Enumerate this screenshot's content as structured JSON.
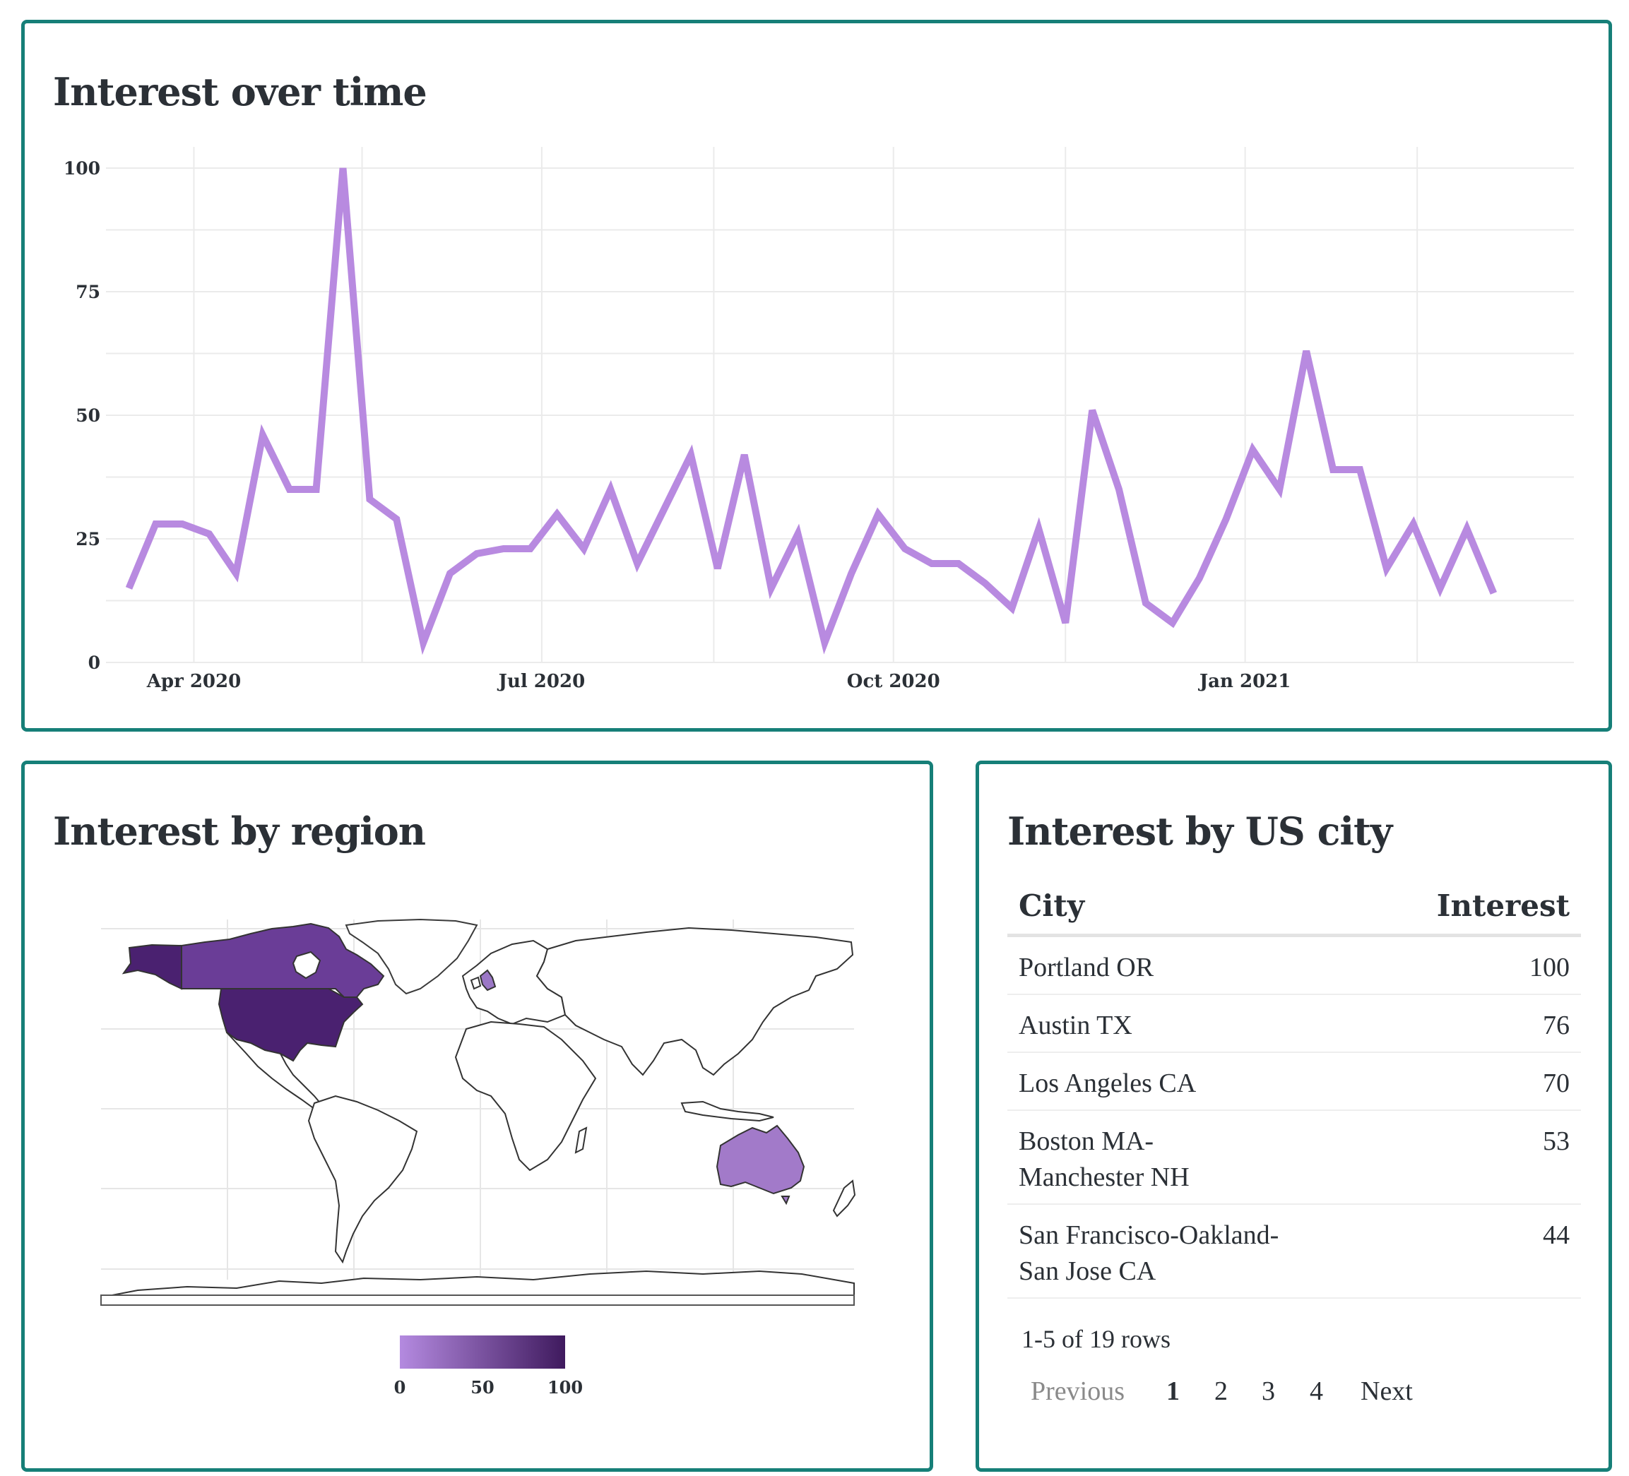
{
  "time_card": {
    "title": "Interest over time"
  },
  "region_card": {
    "title": "Interest by region",
    "legend": {
      "ticks": [
        "0",
        "50",
        "100"
      ],
      "color_low": "#b48ae0",
      "color_high": "#3f1a5e"
    },
    "highlighted_regions": [
      {
        "name": "United States",
        "color": "#4a2170"
      },
      {
        "name": "Canada",
        "color": "#6a3d97"
      },
      {
        "name": "Alaska",
        "color": "#4a2170"
      },
      {
        "name": "Australia",
        "color": "#a27ac9"
      },
      {
        "name": "United Kingdom",
        "color": "#9b77c6"
      }
    ]
  },
  "city_card": {
    "title": "Interest by US city",
    "columns": {
      "city": "City",
      "interest": "Interest"
    },
    "rows": [
      {
        "city": "Portland OR",
        "interest": "100"
      },
      {
        "city": "Austin TX",
        "interest": "76"
      },
      {
        "city": "Los Angeles CA",
        "interest": "70"
      },
      {
        "city": "Boston MA-Manchester NH",
        "interest": "53"
      },
      {
        "city": "San Francisco-Oakland-San Jose CA",
        "interest": "44"
      }
    ],
    "row_count_text": "1-5 of 19 rows",
    "pagination": {
      "previous": "Previous",
      "pages": [
        "1",
        "2",
        "3",
        "4"
      ],
      "current_page": "1",
      "next": "Next"
    }
  },
  "colors": {
    "card_border": "#167f78",
    "line": "#b88ae0",
    "text": "#2b3036"
  },
  "chart_data": {
    "type": "line",
    "title": "Interest over time",
    "xlabel": "",
    "ylabel": "",
    "ylim": [
      0,
      100
    ],
    "yticks": [
      "0",
      "25",
      "50",
      "75",
      "100"
    ],
    "xticks": [
      "Apr 2020",
      "Jul 2020",
      "Oct 2020",
      "Jan 2021"
    ],
    "xlim": [
      "2020-03-09",
      "2021-03-28"
    ],
    "grid": true,
    "series": [
      {
        "color": "#b88ae0",
        "points": [
          [
            "2020-03-15",
            15
          ],
          [
            "2020-03-22",
            28
          ],
          [
            "2020-03-29",
            28
          ],
          [
            "2020-04-05",
            26
          ],
          [
            "2020-04-12",
            18
          ],
          [
            "2020-04-19",
            46
          ],
          [
            "2020-04-26",
            35
          ],
          [
            "2020-05-03",
            35
          ],
          [
            "2020-05-10",
            100
          ],
          [
            "2020-05-17",
            33
          ],
          [
            "2020-05-24",
            29
          ],
          [
            "2020-05-31",
            4
          ],
          [
            "2020-06-07",
            18
          ],
          [
            "2020-06-14",
            22
          ],
          [
            "2020-06-21",
            23
          ],
          [
            "2020-06-28",
            23
          ],
          [
            "2020-07-05",
            30
          ],
          [
            "2020-07-12",
            23
          ],
          [
            "2020-07-19",
            35
          ],
          [
            "2020-07-26",
            20
          ],
          [
            "2020-08-02",
            31
          ],
          [
            "2020-08-09",
            42
          ],
          [
            "2020-08-16",
            19
          ],
          [
            "2020-08-23",
            42
          ],
          [
            "2020-08-30",
            15
          ],
          [
            "2020-09-06",
            26
          ],
          [
            "2020-09-13",
            4
          ],
          [
            "2020-09-20",
            18
          ],
          [
            "2020-09-27",
            30
          ],
          [
            "2020-10-04",
            23
          ],
          [
            "2020-10-11",
            20
          ],
          [
            "2020-10-18",
            20
          ],
          [
            "2020-10-25",
            16
          ],
          [
            "2020-11-01",
            11
          ],
          [
            "2020-11-08",
            27
          ],
          [
            "2020-11-15",
            8
          ],
          [
            "2020-11-22",
            51
          ],
          [
            "2020-11-29",
            35
          ],
          [
            "2020-12-06",
            12
          ],
          [
            "2020-12-13",
            8
          ],
          [
            "2020-12-20",
            17
          ],
          [
            "2020-12-27",
            29
          ],
          [
            "2021-01-03",
            43
          ],
          [
            "2021-01-10",
            35
          ],
          [
            "2021-01-17",
            63
          ],
          [
            "2021-01-24",
            39
          ],
          [
            "2021-01-31",
            39
          ],
          [
            "2021-02-07",
            19
          ],
          [
            "2021-02-14",
            28
          ],
          [
            "2021-02-21",
            15
          ],
          [
            "2021-02-28",
            27
          ],
          [
            "2021-03-07",
            14
          ]
        ]
      }
    ]
  }
}
